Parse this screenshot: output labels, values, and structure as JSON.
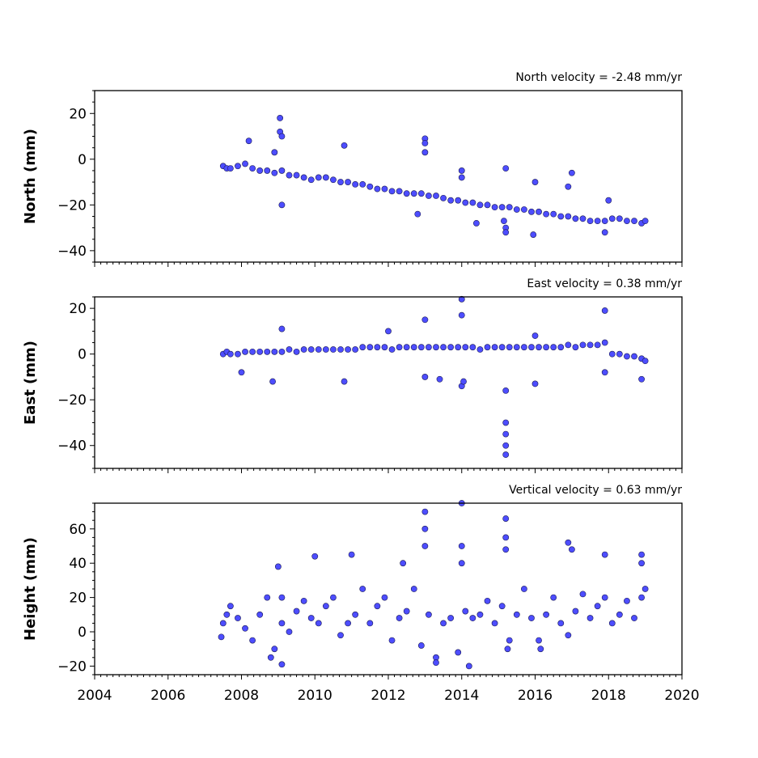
{
  "chart_data": [
    {
      "type": "scatter",
      "title": "North velocity = -2.48 mm/yr",
      "ylabel": "North (mm)",
      "xlim": [
        2004,
        2020
      ],
      "ylim": [
        -45,
        30
      ],
      "yticks": [
        -40,
        -20,
        0,
        20
      ],
      "series": [
        {
          "velocity_mm_per_yr": -2.48,
          "x": [
            2007.5,
            2007.6,
            2007.7,
            2007.9,
            2008.1,
            2008.3,
            2008.5,
            2008.7,
            2008.9,
            2009.1,
            2009.3,
            2009.5,
            2009.7,
            2009.9,
            2010.1,
            2010.3,
            2010.5,
            2010.7,
            2010.9,
            2011.1,
            2011.3,
            2011.5,
            2011.7,
            2011.9,
            2012.1,
            2012.3,
            2012.5,
            2012.7,
            2012.9,
            2013.1,
            2013.3,
            2013.5,
            2013.7,
            2013.9,
            2014.1,
            2014.3,
            2014.5,
            2014.7,
            2014.9,
            2015.1,
            2015.3,
            2015.5,
            2015.7,
            2015.9,
            2016.1,
            2016.3,
            2016.5,
            2016.7,
            2016.9,
            2017.1,
            2017.3,
            2017.5,
            2017.7,
            2017.9,
            2018.1,
            2018.3,
            2018.5,
            2018.7,
            2018.9,
            2019.0,
            2008.2,
            2009.05,
            2009.05,
            2009.1,
            2009.1,
            2008.9,
            2010.8,
            2013.0,
            2013.0,
            2013.0,
            2014.0,
            2014.0,
            2015.2,
            2015.2,
            2015.2,
            2016.0,
            2016.9,
            2017.0,
            2018.0,
            2012.8,
            2014.4,
            2015.15,
            2015.95,
            2017.9
          ],
          "y": [
            -3,
            -4,
            -4,
            -3,
            -2,
            -4,
            -5,
            -5,
            -6,
            -5,
            -7,
            -7,
            -8,
            -9,
            -8,
            -8,
            -9,
            -10,
            -10,
            -11,
            -11,
            -12,
            -13,
            -13,
            -14,
            -14,
            -15,
            -15,
            -15,
            -16,
            -16,
            -17,
            -18,
            -18,
            -19,
            -19,
            -20,
            -20,
            -21,
            -21,
            -21,
            -22,
            -22,
            -23,
            -23,
            -24,
            -24,
            -25,
            -25,
            -26,
            -26,
            -27,
            -27,
            -27,
            -26,
            -26,
            -27,
            -27,
            -28,
            -27,
            8,
            18,
            12,
            10,
            -20,
            3,
            6,
            9,
            7,
            3,
            -5,
            -8,
            -4,
            -30,
            -32,
            -10,
            -12,
            -6,
            -18,
            -24,
            -28,
            -27,
            -33,
            -32
          ]
        }
      ]
    },
    {
      "type": "scatter",
      "title": "East velocity = 0.38 mm/yr",
      "ylabel": "East (mm)",
      "xlim": [
        2004,
        2020
      ],
      "ylim": [
        -50,
        25
      ],
      "yticks": [
        -40,
        -20,
        0,
        20
      ],
      "series": [
        {
          "velocity_mm_per_yr": 0.38,
          "x": [
            2007.5,
            2007.6,
            2007.7,
            2007.9,
            2008.1,
            2008.3,
            2008.5,
            2008.7,
            2008.9,
            2009.1,
            2009.3,
            2009.5,
            2009.7,
            2009.9,
            2010.1,
            2010.3,
            2010.5,
            2010.7,
            2010.9,
            2011.1,
            2011.3,
            2011.5,
            2011.7,
            2011.9,
            2012.1,
            2012.3,
            2012.5,
            2012.7,
            2012.9,
            2013.1,
            2013.3,
            2013.5,
            2013.7,
            2013.9,
            2014.1,
            2014.3,
            2014.5,
            2014.7,
            2014.9,
            2015.1,
            2015.3,
            2015.5,
            2015.7,
            2015.9,
            2016.1,
            2016.3,
            2016.5,
            2016.7,
            2016.9,
            2017.1,
            2017.3,
            2017.5,
            2017.7,
            2017.9,
            2018.1,
            2018.3,
            2018.5,
            2018.7,
            2018.9,
            2019.0,
            2009.1,
            2008.0,
            2010.8,
            2012.0,
            2013.0,
            2013.0,
            2013.4,
            2014.0,
            2014.0,
            2014.0,
            2015.2,
            2015.2,
            2015.2,
            2015.2,
            2015.2,
            2016.0,
            2017.9,
            2017.9,
            2018.9,
            2016.0,
            2008.85,
            2014.05
          ],
          "y": [
            0,
            1,
            0,
            0,
            1,
            1,
            1,
            1,
            1,
            1,
            2,
            1,
            2,
            2,
            2,
            2,
            2,
            2,
            2,
            2,
            3,
            3,
            3,
            3,
            2,
            3,
            3,
            3,
            3,
            3,
            3,
            3,
            3,
            3,
            3,
            3,
            2,
            3,
            3,
            3,
            3,
            3,
            3,
            3,
            3,
            3,
            3,
            3,
            4,
            3,
            4,
            4,
            4,
            5,
            0,
            0,
            -1,
            -1,
            -2,
            -3,
            11,
            -8,
            -12,
            10,
            15,
            -10,
            -11,
            24,
            17,
            -14,
            -16,
            -30,
            -35,
            -40,
            -44,
            -13,
            19,
            -8,
            -11,
            8,
            -12,
            -12
          ]
        }
      ]
    },
    {
      "type": "scatter",
      "title": "Vertical velocity = 0.63 mm/yr",
      "ylabel": "Height (mm)",
      "xlim": [
        2004,
        2020
      ],
      "ylim": [
        -25,
        75
      ],
      "yticks": [
        -20,
        0,
        20,
        40,
        60
      ],
      "series": [
        {
          "velocity_mm_per_yr": 0.63,
          "x": [
            2007.5,
            2007.6,
            2007.7,
            2007.9,
            2008.1,
            2008.3,
            2008.5,
            2008.7,
            2008.9,
            2009.1,
            2009.3,
            2009.5,
            2009.7,
            2009.9,
            2010.1,
            2010.3,
            2010.5,
            2010.7,
            2010.9,
            2011.1,
            2011.3,
            2011.5,
            2011.7,
            2011.9,
            2012.1,
            2012.3,
            2012.5,
            2012.7,
            2012.9,
            2013.1,
            2013.3,
            2013.5,
            2013.7,
            2013.9,
            2014.1,
            2014.3,
            2014.5,
            2014.7,
            2014.9,
            2015.1,
            2015.3,
            2015.5,
            2015.7,
            2015.9,
            2016.1,
            2016.3,
            2016.5,
            2016.7,
            2016.9,
            2017.1,
            2017.3,
            2017.5,
            2017.7,
            2017.9,
            2018.1,
            2018.3,
            2018.5,
            2018.7,
            2018.9,
            2019.0,
            2013.0,
            2013.0,
            2013.0,
            2014.0,
            2014.0,
            2014.0,
            2015.2,
            2015.2,
            2015.2,
            2016.9,
            2017.0,
            2017.9,
            2018.9,
            2018.9,
            2009.0,
            2009.1,
            2010.0,
            2011.0,
            2012.4,
            2014.2,
            2013.3,
            2009.1,
            2008.8,
            2016.15,
            2007.45,
            2015.25
          ],
          "y": [
            5,
            10,
            15,
            8,
            2,
            -5,
            10,
            20,
            -10,
            5,
            0,
            12,
            18,
            8,
            5,
            15,
            20,
            -2,
            5,
            10,
            25,
            5,
            15,
            20,
            -5,
            8,
            12,
            25,
            -8,
            10,
            -15,
            5,
            8,
            -12,
            12,
            8,
            10,
            18,
            5,
            15,
            -5,
            10,
            25,
            8,
            -5,
            10,
            20,
            5,
            -2,
            12,
            22,
            8,
            15,
            20,
            5,
            10,
            18,
            8,
            20,
            25,
            70,
            60,
            50,
            75,
            50,
            40,
            66,
            55,
            48,
            52,
            48,
            45,
            45,
            40,
            38,
            20,
            44,
            45,
            40,
            -20,
            -18,
            -19,
            -15,
            -10,
            -3,
            -10
          ]
        }
      ]
    }
  ]
}
